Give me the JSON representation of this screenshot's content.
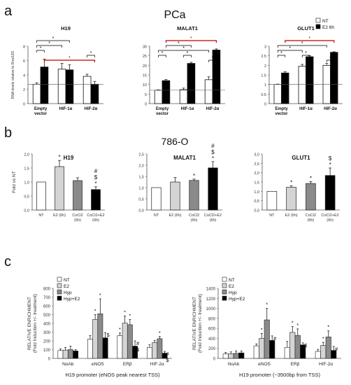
{
  "panels": [
    {
      "letter": "a",
      "title": "PCa"
    },
    {
      "letter": "b",
      "title": "786-O"
    },
    {
      "letter": "c",
      "title": ""
    }
  ],
  "colors": {
    "NT": "#ffffff",
    "E2 6h": "#000000",
    "E2": "#d4d4d4",
    "CoCl2": "#8a8a8a",
    "CoCl2+E2": "#000000",
    "Hyp": "#8a8a8a",
    "Hyp+E2": "#000000",
    "bracket_red": "#c00000",
    "bracket_black": "#000000"
  },
  "chart_data": [
    {
      "id": "a1",
      "type": "bar",
      "title": "H19",
      "ylabel": "RNA levels relative to Rna/18S",
      "ylim": [
        0,
        8
      ],
      "yticks": [
        "0",
        "2",
        "4",
        "6",
        "8"
      ],
      "hline": 2.7,
      "categories": [
        "Empty vector",
        "HIF-1α",
        "HIF-2α"
      ],
      "series": [
        {
          "name": "NT",
          "values": [
            2.7,
            4.8,
            3.8
          ],
          "errors": [
            0.2,
            0.8,
            0.3
          ]
        },
        {
          "name": "E2 6h",
          "values": [
            5.1,
            4.7,
            2.7
          ],
          "errors": [
            1.1,
            0.7,
            0.4
          ]
        }
      ],
      "annotations": [
        "*",
        "*",
        "*",
        "*",
        "*"
      ]
    },
    {
      "id": "a2",
      "type": "bar",
      "title": "MALAT1",
      "ylim": [
        0,
        30
      ],
      "yticks": [
        "0",
        "5",
        "10",
        "15",
        "20",
        "25",
        "30"
      ],
      "hline": 7,
      "categories": [
        "Empty vector",
        "HIF-1α",
        "HIF-2α"
      ],
      "series": [
        {
          "name": "NT",
          "values": [
            7,
            7.3,
            12.5
          ],
          "errors": [
            0.2,
            0.8,
            1.5
          ]
        },
        {
          "name": "E2 6h",
          "values": [
            12,
            21,
            28
          ],
          "errors": [
            0.6,
            0.6,
            0.6
          ]
        }
      ],
      "annotations": [
        "*",
        "*",
        "*",
        "*",
        "*",
        "*"
      ]
    },
    {
      "id": "a3",
      "type": "bar",
      "title": "GLUT1",
      "ylim": [
        0,
        3
      ],
      "yticks": [
        "0",
        "0.5",
        "1",
        "1.5",
        "2",
        "2.5",
        "3"
      ],
      "hline": 1,
      "categories": [
        "Empty vector",
        "HIF-1α",
        "HIF-2α"
      ],
      "series": [
        {
          "name": "NT",
          "values": [
            1,
            1.95,
            2
          ],
          "errors": [
            0.02,
            0.1,
            0.1
          ]
        },
        {
          "name": "E2 6h",
          "values": [
            1.6,
            2.45,
            2.68
          ],
          "errors": [
            0.07,
            0.05,
            0.03
          ]
        }
      ],
      "annotations": [
        "*",
        "*",
        "*",
        "*",
        "*",
        "*"
      ],
      "legend": [
        "NT",
        "E2 6h"
      ]
    },
    {
      "id": "b1",
      "type": "bar",
      "title": "H19",
      "ylabel": "Fold vs NT",
      "ylim": [
        0,
        2.0
      ],
      "yticks": [
        "0,0",
        "0,5",
        "1,0",
        "1,5",
        "2,0"
      ],
      "categories": [
        "NT",
        "E2 (6h)",
        "CoCl2 (6h)",
        "CoCl2+E2 (6h)"
      ],
      "values": [
        1,
        1.55,
        1.05,
        0.73
      ],
      "errors": [
        0,
        0.22,
        0.1,
        0.1
      ],
      "annotations": [
        "",
        "*",
        "",
        "#\n$\n*"
      ]
    },
    {
      "id": "b2",
      "type": "bar",
      "title": "MALAT1",
      "ylim": [
        0,
        2.5
      ],
      "yticks": [
        "0,0",
        "0,5",
        "1,0",
        "1,5",
        "2,0",
        "2,5"
      ],
      "categories": [
        "NT",
        "E2 (6h)",
        "CoCl2 (6h)",
        "CoCl2+E2 (6h)"
      ],
      "values": [
        1,
        1.25,
        1.32,
        1.88
      ],
      "errors": [
        0,
        0.2,
        0.06,
        0.28
      ],
      "annotations": [
        "",
        "",
        "*",
        "#\n$\n*"
      ]
    },
    {
      "id": "b3",
      "type": "bar",
      "title": "GLUT1",
      "ylim": [
        0,
        3.0
      ],
      "yticks": [
        "0,0",
        "0,5",
        "1,0",
        "1,5",
        "2,0",
        "2,5",
        "3,0"
      ],
      "categories": [
        "NT",
        "E2 (6h)",
        "CoCl2 (6h)",
        "CoCl2+E2 (6h)"
      ],
      "values": [
        1,
        1.22,
        1.42,
        1.85
      ],
      "errors": [
        0,
        0.08,
        0.1,
        0.4
      ],
      "annotations": [
        "",
        "*",
        "*",
        "$\n*"
      ]
    },
    {
      "id": "c1",
      "type": "bar",
      "ylabel": "RELATIVE ENRICHMENT (Fold Induction +/- treatment)",
      "xlabel": "H19 promoter (eNOS peak nearest TSS)",
      "ylim": [
        0,
        800
      ],
      "yticks": [
        "0",
        "100",
        "200",
        "300",
        "400",
        "500",
        "600",
        "700",
        "800"
      ],
      "categories": [
        "NoAb",
        "eNOS",
        "ERβ",
        "HIF-2α"
      ],
      "series": [
        {
          "name": "NT",
          "values": [
            90,
            220,
            260,
            125
          ],
          "errors": [
            20,
            40,
            30,
            30
          ]
        },
        {
          "name": "E2",
          "values": [
            95,
            445,
            405,
            180
          ],
          "errors": [
            30,
            55,
            80,
            25
          ]
        },
        {
          "name": "Hyp",
          "values": [
            100,
            510,
            385,
            225
          ],
          "errors": [
            40,
            170,
            60,
            25
          ]
        },
        {
          "name": "Hyp+E2",
          "values": [
            85,
            235,
            140,
            60
          ],
          "errors": [
            15,
            60,
            60,
            20
          ]
        }
      ],
      "annotations": [
        "*",
        "*",
        "$",
        "*",
        "*",
        "*",
        "#",
        "$",
        "*",
        "#",
        "$"
      ],
      "legend": [
        "NT",
        "E2",
        "Hyp",
        "Hyp+E2"
      ]
    },
    {
      "id": "c2",
      "type": "bar",
      "ylabel": "RELATIVE ENRICHMENT (Fold Induction +/- treatment)",
      "xlabel": "H19 promoter (~3500bp from TSS)",
      "ylim": [
        0,
        1400
      ],
      "yticks": [
        "0",
        "200",
        "400",
        "600",
        "800",
        "1000",
        "1200",
        "1400"
      ],
      "categories": [
        "NoAb",
        "eNOS",
        "ERβ",
        "HIF-2α"
      ],
      "series": [
        {
          "name": "NT",
          "values": [
            90,
            250,
            220,
            140
          ],
          "errors": [
            30,
            40,
            120,
            40
          ]
        },
        {
          "name": "E2",
          "values": [
            90,
            400,
            520,
            260
          ],
          "errors": [
            40,
            100,
            120,
            60
          ]
        },
        {
          "name": "Hyp",
          "values": [
            100,
            770,
            460,
            430
          ],
          "errors": [
            50,
            230,
            130,
            120
          ]
        },
        {
          "name": "Hyp+E2",
          "values": [
            110,
            360,
            270,
            160
          ],
          "errors": [
            40,
            90,
            40,
            80
          ]
        }
      ],
      "annotations": [
        "*",
        "*",
        "#",
        "*",
        "*",
        "$",
        "*",
        "*",
        "#"
      ],
      "legend": [
        "NT",
        "E2",
        "Hyp",
        "Hyp+E2"
      ]
    }
  ]
}
